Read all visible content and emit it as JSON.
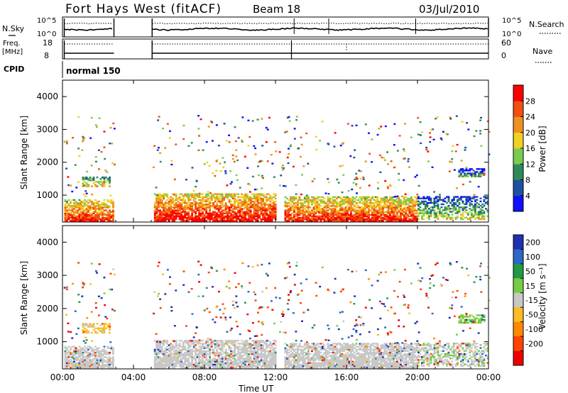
{
  "header": {
    "title": "Fort Hays West (fitACF)",
    "beam": "Beam 18",
    "date": "03/Jul/2010"
  },
  "panels": {
    "nsky_label": "N.Sky",
    "nsky_ticks": [
      "10^5",
      "10^0"
    ],
    "nsearch_label": "N.Search",
    "nsearch_ticks": [
      "10^5",
      "10^0"
    ],
    "freq_label": "Freq.",
    "freq_unit": "[MHz]",
    "freq_ticks": [
      "18",
      "8"
    ],
    "nave_label": "Nave",
    "nave_ticks": [
      "60",
      "0"
    ],
    "cpid_label": "CPID",
    "cpid_value": "normal 150"
  },
  "axes": {
    "ylabel": "Slant Range [km]",
    "yticks": [
      "1000",
      "2000",
      "3000",
      "4000"
    ],
    "xlabel": "Time UT",
    "xticks": [
      "00:00",
      "04:00",
      "08:00",
      "12:00",
      "16:00",
      "20:00",
      "00:00"
    ]
  },
  "colorbars": {
    "power": {
      "label": "Power [dB]",
      "ticks": [
        "4",
        "8",
        "12",
        "16",
        "20",
        "24",
        "28"
      ],
      "colors": [
        "#1010ff",
        "#2050a0",
        "#2f8a5a",
        "#7acc50",
        "#f0d020",
        "#f09020",
        "#f05010",
        "#ff0000"
      ]
    },
    "velocity": {
      "label": "Velocity [m s⁻¹]",
      "ticks": [
        "200",
        "100",
        "50",
        "15",
        "-15",
        "-50",
        "-100",
        "-200"
      ],
      "colors": [
        "#2030b0",
        "#2b66c8",
        "#229944",
        "#77cc44",
        "#c8c8c8",
        "#ffbb22",
        "#ff8800",
        "#ff4400",
        "#ee0000"
      ]
    }
  },
  "chart_data": {
    "type": "heatmap",
    "x_range_hours": [
      0,
      24
    ],
    "y_range_km": [
      180,
      4500
    ],
    "data_gaps_hours": [
      [
        2.9,
        5.05
      ]
    ],
    "main_echo_band_km": [
      200,
      850
    ],
    "patches": [
      {
        "t_start": 0.1,
        "t_end": 2.9,
        "r_min": 200,
        "r_max": 850,
        "power_db": 22,
        "velocity": 0
      },
      {
        "t_start": 1.1,
        "t_end": 2.7,
        "r_min": 1250,
        "r_max": 1550,
        "power_db": 14,
        "velocity": -20
      },
      {
        "t_start": 5.05,
        "t_end": 12.0,
        "r_min": 200,
        "r_max": 1050,
        "power_db": 24,
        "velocity": 0
      },
      {
        "t_start": 12.5,
        "t_end": 20.0,
        "r_min": 200,
        "r_max": 950,
        "power_db": 22,
        "velocity": 0
      },
      {
        "t_start": 20.0,
        "t_end": 24.0,
        "r_min": 250,
        "r_max": 950,
        "power_db": 10,
        "velocity": 10
      },
      {
        "t_start": 22.3,
        "t_end": 23.8,
        "r_min": 1550,
        "r_max": 1800,
        "power_db": 6,
        "velocity": 30
      }
    ],
    "cpid": "normal 150"
  }
}
